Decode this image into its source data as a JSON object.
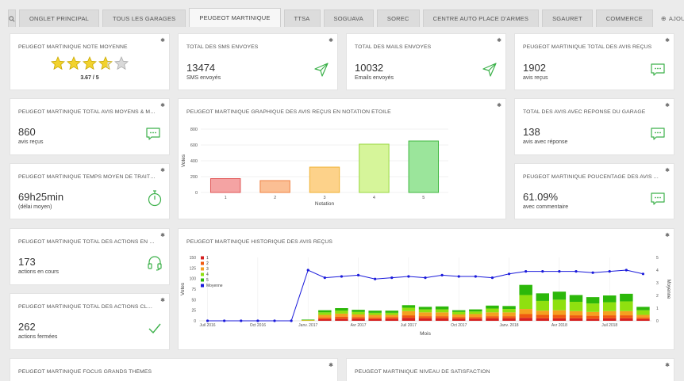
{
  "tabs": [
    "Onglet principal",
    "Tous les garages",
    "Peugeot Martinique",
    "TTSA",
    "Soguava",
    "Sorec",
    "Centre Auto Place d'Armes",
    "SGauret",
    "Commerce"
  ],
  "add_tab_label": "Ajouter",
  "cards": {
    "note": {
      "title": "Peugeot Martinique note moyenne",
      "rating": "3.67 / 5",
      "stars_value": 3.67
    },
    "sms": {
      "title": "Total des SMS envoyés",
      "value": "13474",
      "sub": "SMS envoyés"
    },
    "mails": {
      "title": "Total des mails envoyés",
      "value": "10032",
      "sub": "Emails envoyés"
    },
    "avis_total": {
      "title": "Peugeot Martinique total des avis reçus",
      "value": "1902",
      "sub": "avis reçus"
    },
    "avis_moyens": {
      "title": "Peugeot Martinique total avis moyens & mauvais non ...",
      "value": "860",
      "sub": "avis reçus"
    },
    "temps": {
      "title": "Peugeot Martinique temps moyen de traitement des ac...",
      "value": "69h25min",
      "sub": "(délai moyen)"
    },
    "reponse": {
      "title": "Total des avis avec réponse du garage",
      "value": "138",
      "sub": "avis avec réponse"
    },
    "pourcentage": {
      "title": "Peugeot Martinique poucentage des avis avec comme...",
      "value": "61.09%",
      "sub": "avec commentaire"
    },
    "actions_cours": {
      "title": "Peugeot Martinique total des actions en cours",
      "value": "173",
      "sub": "actions en cours"
    },
    "actions_closes": {
      "title": "Peugeot Martinique total des actions closes",
      "value": "262",
      "sub": "actions fermées"
    },
    "focus": {
      "title": "Peugeot Martinique focus grands thèmes"
    },
    "satisfaction": {
      "title": "Peugeot Martinique niveau de satisfaction"
    },
    "bar_chart": {
      "title": "Peugeot Martinique graphique des avis reçus en notation étoile"
    },
    "history": {
      "title": "Peugeot Martinique historique des avis reçus"
    }
  },
  "chart_data": [
    {
      "type": "bar",
      "categories": [
        "1",
        "2",
        "3",
        "4",
        "5"
      ],
      "values": [
        175,
        150,
        320,
        610,
        650
      ],
      "colors": [
        "#f4a3a3",
        "#fbbf94",
        "#fdd28a",
        "#d6f59a",
        "#9be59b"
      ],
      "borders": [
        "#e05555",
        "#f08040",
        "#f0b030",
        "#99d840",
        "#40b840"
      ],
      "xlabel": "Notation",
      "ylabel": "Votes",
      "ylim": [
        0,
        800
      ],
      "yticks": [
        0,
        200,
        400,
        600,
        800
      ]
    },
    {
      "type": "bar",
      "stacked": true,
      "xlabel": "Mois",
      "ylabel": "Votes",
      "y2label": "Moyenne",
      "ylim": [
        0,
        150
      ],
      "yticks": [
        0,
        25,
        50,
        75,
        100,
        125,
        150
      ],
      "y2lim": [
        0,
        5
      ],
      "y2ticks": [
        0,
        1,
        2,
        3,
        4,
        5
      ],
      "x_tick_labels": [
        "Juil 2016",
        "Oct 2016",
        "Janv. 2017",
        "Avr 2017",
        "Juil 2017",
        "Oct 2017",
        "Janv. 2018",
        "Avr 2018",
        "Juil 2018"
      ],
      "x_tick_months": [
        0,
        3,
        6,
        9,
        12,
        15,
        18,
        21,
        24
      ],
      "series": [
        {
          "name": "1",
          "color": "#d62020"
        },
        {
          "name": "2",
          "color": "#f05a10"
        },
        {
          "name": "3",
          "color": "#f5a020"
        },
        {
          "name": "4",
          "color": "#8fe010"
        },
        {
          "name": "5",
          "color": "#2cb80a"
        }
      ],
      "line_series": {
        "name": "Moyenne",
        "color": "#1a1adb"
      },
      "months": [
        {
          "m": 0,
          "stack": [
            0,
            0,
            0,
            0,
            0
          ],
          "avg": 0
        },
        {
          "m": 1,
          "stack": [
            0,
            0,
            0,
            0,
            0
          ],
          "avg": 0
        },
        {
          "m": 2,
          "stack": [
            0,
            0,
            0,
            0,
            0
          ],
          "avg": 0
        },
        {
          "m": 3,
          "stack": [
            0,
            0,
            0,
            0,
            0
          ],
          "avg": 0
        },
        {
          "m": 4,
          "stack": [
            0,
            0,
            0,
            0,
            0
          ],
          "avg": 0
        },
        {
          "m": 5,
          "stack": [
            0,
            0,
            0,
            0,
            0
          ],
          "avg": 0
        },
        {
          "m": 6,
          "stack": [
            0,
            0,
            1,
            1,
            1
          ],
          "avg": 4.0
        },
        {
          "m": 7,
          "stack": [
            4,
            4,
            6,
            6,
            5
          ],
          "avg": 3.4
        },
        {
          "m": 8,
          "stack": [
            5,
            5,
            7,
            7,
            6
          ],
          "avg": 3.5
        },
        {
          "m": 9,
          "stack": [
            5,
            4,
            6,
            6,
            5
          ],
          "avg": 3.6
        },
        {
          "m": 10,
          "stack": [
            4,
            4,
            6,
            5,
            5
          ],
          "avg": 3.3
        },
        {
          "m": 11,
          "stack": [
            5,
            4,
            5,
            5,
            5
          ],
          "avg": 3.4
        },
        {
          "m": 12,
          "stack": [
            7,
            6,
            10,
            8,
            6
          ],
          "avg": 3.5
        },
        {
          "m": 13,
          "stack": [
            6,
            5,
            9,
            7,
            6
          ],
          "avg": 3.4
        },
        {
          "m": 14,
          "stack": [
            6,
            5,
            9,
            7,
            7
          ],
          "avg": 3.6
        },
        {
          "m": 15,
          "stack": [
            5,
            4,
            6,
            6,
            4
          ],
          "avg": 3.5
        },
        {
          "m": 16,
          "stack": [
            5,
            4,
            7,
            6,
            5
          ],
          "avg": 3.5
        },
        {
          "m": 17,
          "stack": [
            6,
            5,
            9,
            9,
            7
          ],
          "avg": 3.4
        },
        {
          "m": 18,
          "stack": [
            6,
            5,
            9,
            8,
            7
          ],
          "avg": 3.7
        },
        {
          "m": 19,
          "stack": [
            7,
            9,
            12,
            33,
            24
          ],
          "avg": 3.9
        },
        {
          "m": 20,
          "stack": [
            6,
            8,
            10,
            23,
            18
          ],
          "avg": 3.9
        },
        {
          "m": 21,
          "stack": [
            6,
            8,
            11,
            25,
            19
          ],
          "avg": 3.9
        },
        {
          "m": 22,
          "stack": [
            6,
            7,
            10,
            22,
            16
          ],
          "avg": 3.9
        },
        {
          "m": 23,
          "stack": [
            5,
            7,
            9,
            20,
            15
          ],
          "avg": 3.8
        },
        {
          "m": 24,
          "stack": [
            6,
            7,
            10,
            21,
            16
          ],
          "avg": 3.9
        },
        {
          "m": 25,
          "stack": [
            6,
            7,
            10,
            23,
            18
          ],
          "avg": 4.0
        },
        {
          "m": 26,
          "stack": [
            4,
            4,
            6,
            11,
            8
          ],
          "avg": 3.7
        }
      ]
    }
  ]
}
